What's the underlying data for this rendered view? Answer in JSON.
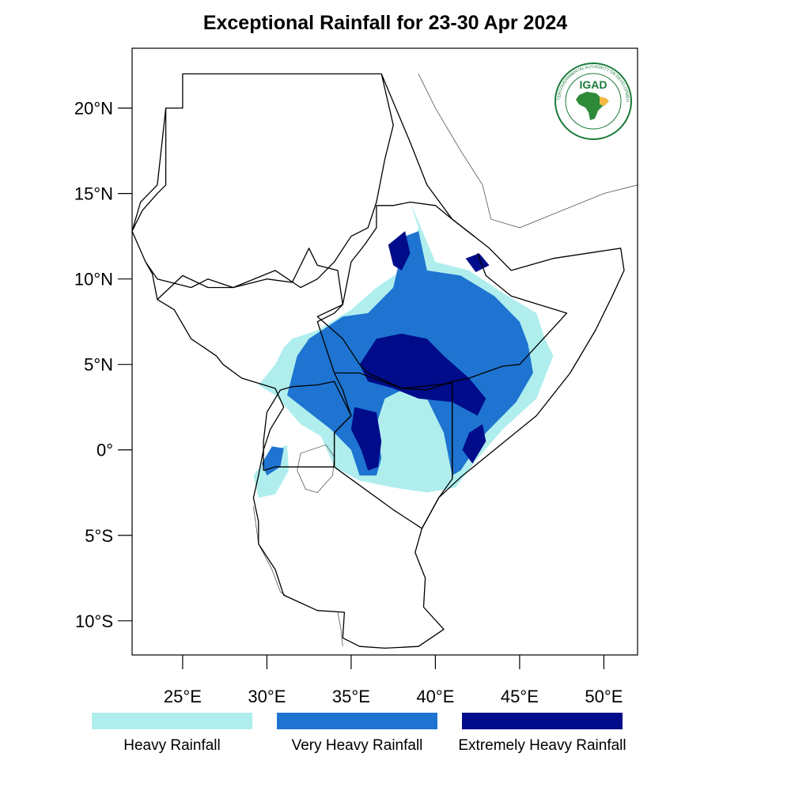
{
  "title": "Exceptional Rainfall for 23-30 Apr 2024",
  "map": {
    "lon_range": [
      22,
      52
    ],
    "lat_range": [
      -12,
      23.5
    ],
    "lat_ticks": [
      {
        "value": 20,
        "label": "20°N"
      },
      {
        "value": 15,
        "label": "15°N"
      },
      {
        "value": 10,
        "label": "10°N"
      },
      {
        "value": 5,
        "label": "5°N"
      },
      {
        "value": 0,
        "label": "0°"
      },
      {
        "value": -5,
        "label": "5°S"
      },
      {
        "value": -10,
        "label": "10°S"
      }
    ],
    "lon_ticks": [
      {
        "value": 25,
        "label": "25°E"
      },
      {
        "value": 30,
        "label": "30°E"
      },
      {
        "value": 35,
        "label": "35°E"
      },
      {
        "value": 40,
        "label": "40°E"
      },
      {
        "value": 45,
        "label": "45°E"
      },
      {
        "value": 50,
        "label": "50°E"
      }
    ]
  },
  "logo": {
    "text": "IGAD",
    "ring_text": "INTERGOVERNMENTAL AUTHORITY ON DEVELOPMENT",
    "colors": {
      "ring": "#1a7a3a",
      "text": "#1a7a3a",
      "africa": "#2e8b3a",
      "highlight": "#f4b942"
    }
  },
  "legend": [
    {
      "label": "Heavy Rainfall",
      "color": "#b0eeee"
    },
    {
      "label": "Very Heavy Rainfall",
      "color": "#1e74d0"
    },
    {
      "label": "Extremely Heavy Rainfall",
      "color": "#000c8a"
    }
  ],
  "rainfall_regions": [
    {
      "category": "Heavy Rainfall",
      "polygon": [
        [
          31.5,
          6.5
        ],
        [
          33,
          7
        ],
        [
          35,
          8.2
        ],
        [
          36.5,
          9.5
        ],
        [
          38,
          10.5
        ],
        [
          39,
          13
        ],
        [
          38.5,
          14.5
        ],
        [
          40,
          11
        ],
        [
          42,
          10.5
        ],
        [
          44,
          9.2
        ],
        [
          46,
          8
        ],
        [
          46.5,
          6.5
        ],
        [
          47,
          5.5
        ],
        [
          46,
          3
        ],
        [
          44,
          1.2
        ],
        [
          42.5,
          -0.5
        ],
        [
          41.2,
          -2.2
        ],
        [
          39.5,
          -2.5
        ],
        [
          37.5,
          -2.2
        ],
        [
          35.5,
          -1.8
        ],
        [
          34,
          -1
        ],
        [
          33.2,
          0.8
        ],
        [
          32,
          1.5
        ],
        [
          30.5,
          3.2
        ],
        [
          29.5,
          3.8
        ],
        [
          30.5,
          5
        ],
        [
          31,
          6
        ]
      ]
    },
    {
      "category": "Heavy Rainfall",
      "polygon": [
        [
          30.2,
          -0.2
        ],
        [
          31.2,
          0.3
        ],
        [
          31.3,
          -1.2
        ],
        [
          30.5,
          -2.6
        ],
        [
          29.5,
          -2.8
        ],
        [
          29.2,
          -1.5
        ]
      ]
    },
    {
      "category": "Very Heavy Rainfall",
      "polygon": [
        [
          32.5,
          6.5
        ],
        [
          34.5,
          7.8
        ],
        [
          36,
          8
        ],
        [
          37.5,
          9.5
        ],
        [
          38.2,
          12.5
        ],
        [
          39,
          12.8
        ],
        [
          39.5,
          10.5
        ],
        [
          41.5,
          10.2
        ],
        [
          43.5,
          9
        ],
        [
          45,
          7.5
        ],
        [
          45.5,
          6.2
        ],
        [
          45.8,
          4.5
        ],
        [
          44.8,
          2.8
        ],
        [
          43,
          1
        ],
        [
          41.5,
          -1.2
        ],
        [
          41,
          -1.5
        ],
        [
          40.5,
          1
        ],
        [
          39.5,
          3
        ],
        [
          38,
          3.5
        ],
        [
          37,
          3
        ],
        [
          36.5,
          1.5
        ],
        [
          36.8,
          -0.5
        ],
        [
          36.5,
          -1.5
        ],
        [
          35.5,
          -1.5
        ],
        [
          35,
          0
        ],
        [
          33.8,
          1.2
        ],
        [
          32.5,
          2.2
        ],
        [
          31.2,
          3.2
        ],
        [
          31.8,
          5.5
        ]
      ]
    },
    {
      "category": "Very Heavy Rainfall",
      "polygon": [
        [
          30.3,
          0.2
        ],
        [
          31,
          0.1
        ],
        [
          30.8,
          -1
        ],
        [
          30,
          -1.5
        ],
        [
          29.7,
          -0.8
        ]
      ]
    },
    {
      "category": "Extremely Heavy Rainfall",
      "polygon": [
        [
          35.5,
          5
        ],
        [
          36.5,
          6.5
        ],
        [
          38,
          6.8
        ],
        [
          39.5,
          6.5
        ],
        [
          40.5,
          5.5
        ],
        [
          42,
          4.2
        ],
        [
          43,
          3
        ],
        [
          42.5,
          2
        ],
        [
          41,
          2.8
        ],
        [
          39,
          3
        ],
        [
          37.5,
          3.6
        ],
        [
          36,
          4
        ]
      ]
    },
    {
      "category": "Extremely Heavy Rainfall",
      "polygon": [
        [
          35.2,
          2.5
        ],
        [
          36.5,
          2.2
        ],
        [
          36.8,
          0.5
        ],
        [
          36.6,
          -1
        ],
        [
          36,
          -1.2
        ],
        [
          35.6,
          0
        ],
        [
          35,
          1.2
        ]
      ]
    },
    {
      "category": "Extremely Heavy Rainfall",
      "polygon": [
        [
          37.2,
          12
        ],
        [
          38.2,
          12.8
        ],
        [
          38.5,
          11.5
        ],
        [
          38,
          10.5
        ],
        [
          37.5,
          10.8
        ]
      ]
    },
    {
      "category": "Extremely Heavy Rainfall",
      "polygon": [
        [
          42,
          1
        ],
        [
          42.8,
          1.5
        ],
        [
          43,
          0.5
        ],
        [
          42.2,
          -0.8
        ],
        [
          41.6,
          0
        ]
      ]
    },
    {
      "category": "Extremely Heavy Rainfall",
      "polygon": [
        [
          41.8,
          11.2
        ],
        [
          42.6,
          11.5
        ],
        [
          43.2,
          10.8
        ],
        [
          42.4,
          10.4
        ]
      ]
    }
  ],
  "borders": [
    {
      "name": "region-outline",
      "line": [
        [
          25,
          22
        ],
        [
          25,
          20
        ],
        [
          24,
          20
        ],
        [
          24,
          15.5
        ],
        [
          23.5,
          15
        ],
        [
          22.6,
          14
        ],
        [
          22,
          12.8
        ],
        [
          22.8,
          11
        ],
        [
          23.5,
          10
        ],
        [
          25.5,
          9.5
        ],
        [
          26.5,
          10
        ],
        [
          28,
          9.5
        ],
        [
          30.5,
          10.5
        ],
        [
          32,
          9.5
        ],
        [
          33,
          10
        ],
        [
          34,
          11
        ],
        [
          35,
          12.5
        ],
        [
          36,
          13
        ],
        [
          36.5,
          14.5
        ],
        [
          37,
          17
        ],
        [
          37.5,
          19
        ],
        [
          36.8,
          22
        ],
        [
          38.5,
          18
        ],
        [
          39.5,
          15.5
        ],
        [
          41,
          13.5
        ],
        [
          43.2,
          11.8
        ],
        [
          44.5,
          10.5
        ],
        [
          47,
          11.2
        ],
        [
          51,
          11.8
        ],
        [
          51.2,
          10.5
        ],
        [
          50.5,
          9
        ],
        [
          49.5,
          7
        ],
        [
          48,
          4.5
        ],
        [
          46,
          2
        ],
        [
          43.5,
          0
        ],
        [
          41.5,
          -1.6
        ],
        [
          40.2,
          -2.8
        ],
        [
          39.2,
          -4.6
        ],
        [
          38.8,
          -6
        ],
        [
          39.4,
          -7.5
        ],
        [
          39.3,
          -9.2
        ],
        [
          40.5,
          -10.5
        ],
        [
          39,
          -11.5
        ],
        [
          37,
          -11.6
        ],
        [
          35.5,
          -11.5
        ],
        [
          34.5,
          -11
        ],
        [
          34.6,
          -9.5
        ],
        [
          33,
          -9.4
        ],
        [
          31,
          -8.5
        ],
        [
          30.5,
          -7
        ],
        [
          29.5,
          -5.5
        ],
        [
          29.5,
          -4.2
        ],
        [
          29.2,
          -2.8
        ],
        [
          29.5,
          -1.5
        ],
        [
          29.8,
          0
        ],
        [
          30.2,
          1.2
        ],
        [
          31,
          2.5
        ],
        [
          30.5,
          3.6
        ],
        [
          28.5,
          4.2
        ],
        [
          27.4,
          5
        ],
        [
          27,
          5.5
        ],
        [
          25.5,
          6.5
        ],
        [
          24.5,
          8.2
        ],
        [
          23.5,
          8.8
        ],
        [
          23.2,
          10.3
        ],
        [
          22.8,
          11
        ],
        [
          22,
          12.8
        ],
        [
          22.5,
          14.5
        ],
        [
          23.5,
          15.5
        ],
        [
          24,
          20
        ],
        [
          25,
          20
        ],
        [
          25,
          22
        ],
        [
          36.8,
          22
        ]
      ]
    },
    {
      "name": "sudan-southsudan",
      "line": [
        [
          23.5,
          8.8
        ],
        [
          25,
          10.2
        ],
        [
          26.5,
          9.5
        ],
        [
          28,
          9.5
        ],
        [
          30,
          10
        ],
        [
          31.5,
          9.8
        ],
        [
          32.5,
          11.8
        ],
        [
          33,
          10.8
        ],
        [
          34.2,
          10.5
        ],
        [
          34.5,
          8.5
        ],
        [
          34,
          8
        ],
        [
          33,
          7.5
        ],
        [
          34,
          4.5
        ]
      ]
    },
    {
      "name": "ethiopia-west",
      "line": [
        [
          36.5,
          14.3
        ],
        [
          36.5,
          13
        ],
        [
          35.8,
          12
        ],
        [
          35,
          11
        ],
        [
          34.5,
          8.5
        ],
        [
          33,
          7.8
        ],
        [
          34.5,
          6.5
        ],
        [
          35.5,
          5
        ],
        [
          36,
          4.5
        ],
        [
          38,
          3.6
        ],
        [
          39.5,
          3.5
        ],
        [
          41,
          4
        ],
        [
          42,
          4.2
        ],
        [
          44,
          4.9
        ],
        [
          45,
          5
        ],
        [
          47.8,
          8
        ],
        [
          44.5,
          9
        ],
        [
          43,
          10.2
        ],
        [
          42.5,
          11.5
        ]
      ]
    },
    {
      "name": "kenya-border",
      "line": [
        [
          34,
          4.5
        ],
        [
          35.5,
          4.5
        ],
        [
          36,
          4.3
        ],
        [
          38,
          3.6
        ],
        [
          41,
          3.9
        ],
        [
          41,
          -1.7
        ],
        [
          40.2,
          -2.8
        ],
        [
          39.2,
          -4.6
        ],
        [
          37.5,
          -3.5
        ],
        [
          34,
          -1
        ],
        [
          34,
          1
        ],
        [
          35,
          2
        ],
        [
          34.5,
          3.5
        ],
        [
          34,
          4.5
        ]
      ]
    },
    {
      "name": "uganda-border",
      "line": [
        [
          29.8,
          -1.2
        ],
        [
          30.5,
          -1
        ],
        [
          34,
          -1
        ],
        [
          34,
          1
        ],
        [
          35,
          2
        ],
        [
          34,
          4
        ],
        [
          33,
          3.8
        ],
        [
          31.5,
          3.7
        ],
        [
          30.8,
          3.5
        ],
        [
          30,
          2.2
        ],
        [
          29.8,
          0.5
        ],
        [
          29.8,
          -1.2
        ]
      ]
    },
    {
      "name": "somalia-kenya",
      "line": [
        [
          41,
          3.9
        ],
        [
          41,
          -1.7
        ]
      ]
    },
    {
      "name": "eritrea-ethiopia",
      "line": [
        [
          36.5,
          14.3
        ],
        [
          37.5,
          14.3
        ],
        [
          38.5,
          14.5
        ],
        [
          40,
          14.3
        ],
        [
          41,
          13.5
        ],
        [
          42.3,
          12.5
        ]
      ]
    }
  ],
  "thin_lines": [
    {
      "name": "lake-victoria",
      "line": [
        [
          32,
          -0.2
        ],
        [
          33.5,
          0.3
        ],
        [
          34,
          -0.4
        ],
        [
          33.9,
          -1.5
        ],
        [
          33,
          -2.5
        ],
        [
          32.3,
          -2.3
        ],
        [
          31.8,
          -1.2
        ],
        [
          32,
          -0.2
        ]
      ]
    },
    {
      "name": "arabia-coast",
      "line": [
        [
          39,
          22
        ],
        [
          40,
          20
        ],
        [
          41.5,
          17.5
        ],
        [
          42.8,
          15.5
        ],
        [
          43.3,
          13.5
        ],
        [
          45,
          13
        ],
        [
          47,
          13.8
        ],
        [
          50,
          15
        ],
        [
          52,
          15.5
        ]
      ]
    },
    {
      "name": "lake-tanganyika",
      "line": [
        [
          29.2,
          -3.3
        ],
        [
          29.5,
          -5.5
        ],
        [
          30.3,
          -7
        ],
        [
          30.8,
          -8.3
        ],
        [
          31.2,
          -8.6
        ]
      ]
    },
    {
      "name": "lake-malawi",
      "line": [
        [
          34.2,
          -9.5
        ],
        [
          34.4,
          -10.5
        ],
        [
          34.5,
          -11.5
        ]
      ]
    }
  ]
}
